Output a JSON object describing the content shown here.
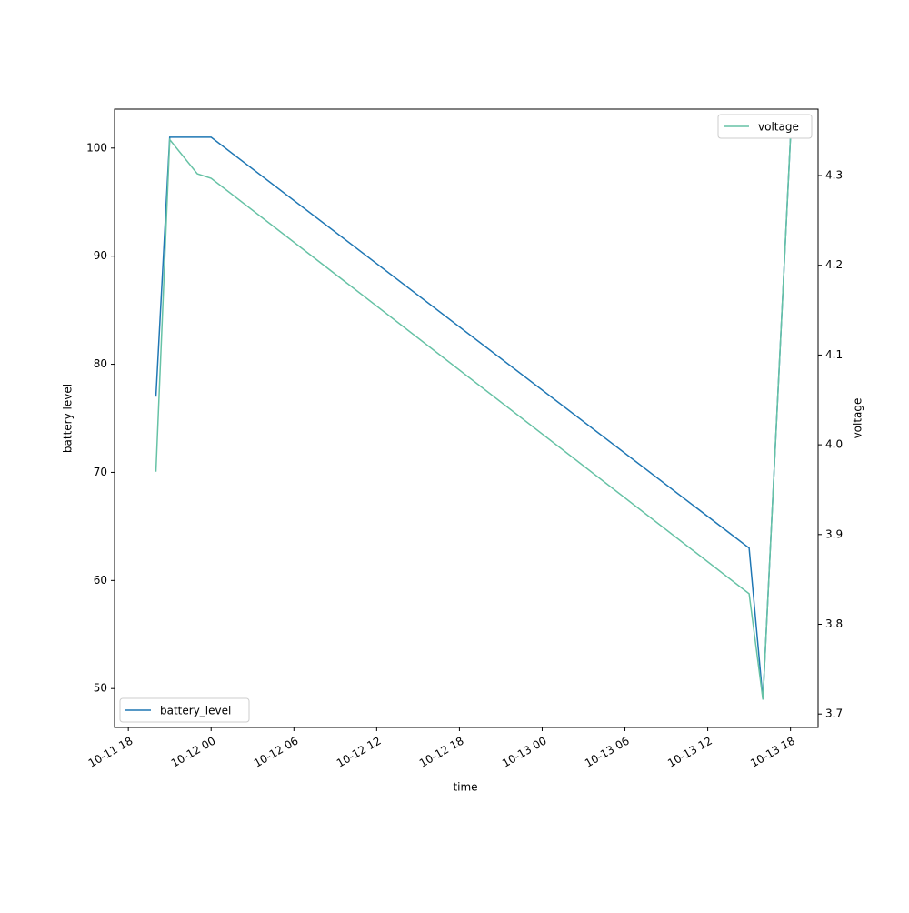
{
  "chart_data": {
    "type": "line",
    "x_label": "time",
    "y_label": "battery level",
    "y2_label": "voltage",
    "x": [
      "10-11 20",
      "10-11 21",
      "10-11 23",
      "10-12 00",
      "10-13 15",
      "10-13 16",
      "10-13 18"
    ],
    "series": [
      {
        "name": "battery_level",
        "color": "#1f77b4",
        "values": [
          77,
          101,
          101,
          101,
          63,
          49,
          101
        ]
      },
      {
        "name": "voltage",
        "color": "#66c2a5",
        "axis": "y2",
        "values": [
          3.97,
          4.34,
          4.302,
          4.297,
          3.834,
          3.716,
          4.343
        ]
      }
    ],
    "xlim": [
      "10-11 17",
      "10-13 20"
    ],
    "xticks": [
      "10-11 18",
      "10-12 00",
      "10-12 06",
      "10-12 12",
      "10-12 18",
      "10-13 00",
      "10-13 06",
      "10-13 12",
      "10-13 18"
    ],
    "ylim": [
      46.4,
      103.6
    ],
    "yticks": [
      50,
      60,
      70,
      80,
      90,
      100
    ],
    "y2lim": [
      3.685,
      4.374
    ],
    "y2ticks": [
      3.7,
      3.8,
      3.9,
      4.0,
      4.1,
      4.2,
      4.3
    ],
    "legend": [
      "lower left",
      "upper right"
    ]
  }
}
